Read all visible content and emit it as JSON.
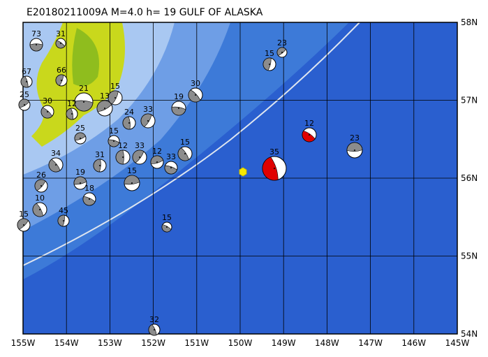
{
  "title": "E20180211009A M=4.0 h= 19 GULF OF ALASKA",
  "lon_labels": [
    "155W",
    "154W",
    "153W",
    "152W",
    "151W",
    "150W",
    "149W",
    "148W",
    "147W",
    "146W",
    "145W"
  ],
  "lat_labels": [
    "58N",
    "57N",
    "56N",
    "55N",
    "54N"
  ],
  "events": [
    {
      "label": "73"
    },
    {
      "label": "31"
    },
    {
      "label": "67"
    },
    {
      "label": "66"
    },
    {
      "label": "25"
    },
    {
      "label": "21"
    },
    {
      "label": "30"
    },
    {
      "label": "12"
    },
    {
      "label": "15"
    },
    {
      "label": "13"
    },
    {
      "label": "19"
    },
    {
      "label": "30"
    },
    {
      "label": "24"
    },
    {
      "label": "33"
    },
    {
      "label": "25"
    },
    {
      "label": "15"
    },
    {
      "label": "34"
    },
    {
      "label": "12"
    },
    {
      "label": "33"
    },
    {
      "label": "12"
    },
    {
      "label": "33"
    },
    {
      "label": "15"
    },
    {
      "label": "31"
    },
    {
      "label": "26"
    },
    {
      "label": "19"
    },
    {
      "label": "18"
    },
    {
      "label": "10"
    },
    {
      "label": "45"
    },
    {
      "label": "15"
    },
    {
      "label": "15"
    },
    {
      "label": "15"
    },
    {
      "label": "32"
    },
    {
      "label": "15"
    },
    {
      "label": "23"
    },
    {
      "label": "23"
    },
    {
      "label": "12"
    },
    {
      "label": "35"
    }
  ]
}
